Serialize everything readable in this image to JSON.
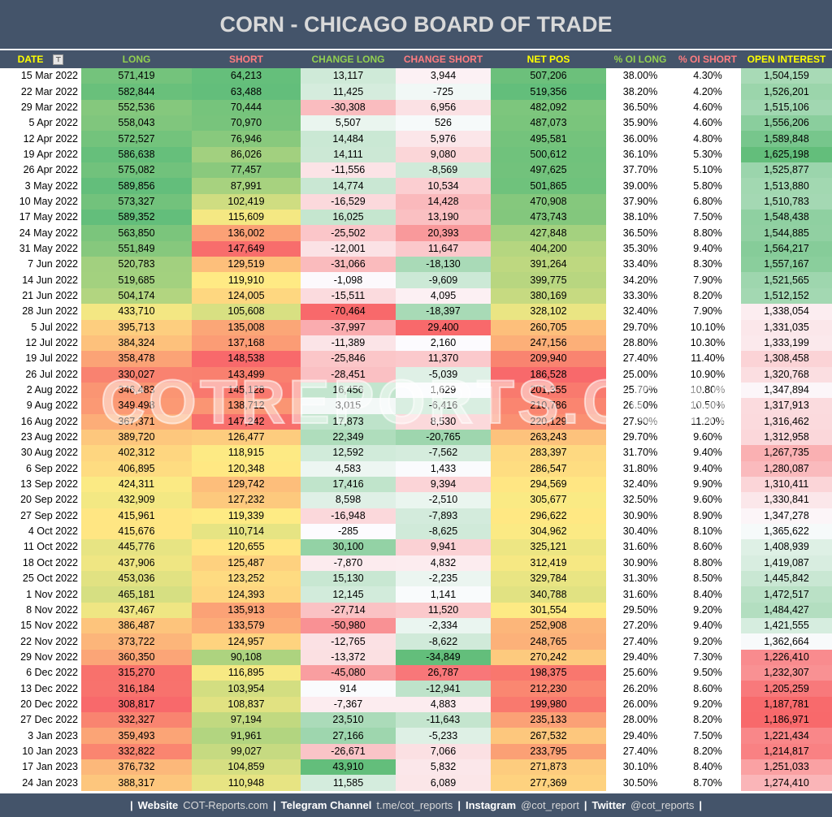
{
  "title": "CORN - CHICAGO BOARD OF TRADE",
  "columns": [
    {
      "label": "DATE",
      "color": "#ffff00"
    },
    {
      "label": "LONG",
      "color": "#92d050"
    },
    {
      "label": "SHORT",
      "color": "#ff7c80"
    },
    {
      "label": "CHANGE LONG",
      "color": "#92d050"
    },
    {
      "label": "CHANGE SHORT",
      "color": "#ff7c80"
    },
    {
      "label": "NET POS",
      "color": "#ffff00"
    },
    {
      "label": "% OI LONG",
      "color": "#92d050"
    },
    {
      "label": "% OI SHORT",
      "color": "#ff7c80"
    },
    {
      "label": "OPEN INTEREST",
      "color": "#ffff00"
    }
  ],
  "filter_icon": "filter-sort-icon",
  "scale_colors": {
    "red": "#f8696b",
    "yellow": "#ffeb84",
    "green": "#63be7b",
    "white": "#fcfcff"
  },
  "rows": [
    [
      "15 Mar 2022",
      "571,419",
      "64,213",
      "13,117",
      "3,944",
      "507,206",
      "38.00%",
      "4.30%",
      "1,504,159"
    ],
    [
      "22 Mar 2022",
      "582,844",
      "63,488",
      "11,425",
      "-725",
      "519,356",
      "38.20%",
      "4.20%",
      "1,526,201"
    ],
    [
      "29 Mar 2022",
      "552,536",
      "70,444",
      "-30,308",
      "6,956",
      "482,092",
      "36.50%",
      "4.60%",
      "1,515,106"
    ],
    [
      "5 Apr 2022",
      "558,043",
      "70,970",
      "5,507",
      "526",
      "487,073",
      "35.90%",
      "4.60%",
      "1,556,206"
    ],
    [
      "12 Apr 2022",
      "572,527",
      "76,946",
      "14,484",
      "5,976",
      "495,581",
      "36.00%",
      "4.80%",
      "1,589,848"
    ],
    [
      "19 Apr 2022",
      "586,638",
      "86,026",
      "14,111",
      "9,080",
      "500,612",
      "36.10%",
      "5.30%",
      "1,625,198"
    ],
    [
      "26 Apr 2022",
      "575,082",
      "77,457",
      "-11,556",
      "-8,569",
      "497,625",
      "37.70%",
      "5.10%",
      "1,525,877"
    ],
    [
      "3 May 2022",
      "589,856",
      "87,991",
      "14,774",
      "10,534",
      "501,865",
      "39.00%",
      "5.80%",
      "1,513,880"
    ],
    [
      "10 May 2022",
      "573,327",
      "102,419",
      "-16,529",
      "14,428",
      "470,908",
      "37.90%",
      "6.80%",
      "1,510,783"
    ],
    [
      "17 May 2022",
      "589,352",
      "115,609",
      "16,025",
      "13,190",
      "473,743",
      "38.10%",
      "7.50%",
      "1,548,438"
    ],
    [
      "24 May 2022",
      "563,850",
      "136,002",
      "-25,502",
      "20,393",
      "427,848",
      "36.50%",
      "8.80%",
      "1,544,885"
    ],
    [
      "31 May 2022",
      "551,849",
      "147,649",
      "-12,001",
      "11,647",
      "404,200",
      "35.30%",
      "9.40%",
      "1,564,217"
    ],
    [
      "7 Jun 2022",
      "520,783",
      "129,519",
      "-31,066",
      "-18,130",
      "391,264",
      "33.40%",
      "8.30%",
      "1,557,167"
    ],
    [
      "14 Jun 2022",
      "519,685",
      "119,910",
      "-1,098",
      "-9,609",
      "399,775",
      "34.20%",
      "7.90%",
      "1,521,565"
    ],
    [
      "21 Jun 2022",
      "504,174",
      "124,005",
      "-15,511",
      "4,095",
      "380,169",
      "33.30%",
      "8.20%",
      "1,512,152"
    ],
    [
      "28 Jun 2022",
      "433,710",
      "105,608",
      "-70,464",
      "-18,397",
      "328,102",
      "32.40%",
      "7.90%",
      "1,338,054"
    ],
    [
      "5 Jul 2022",
      "395,713",
      "135,008",
      "-37,997",
      "29,400",
      "260,705",
      "29.70%",
      "10.10%",
      "1,331,035"
    ],
    [
      "12 Jul 2022",
      "384,324",
      "137,168",
      "-11,389",
      "2,160",
      "247,156",
      "28.80%",
      "10.30%",
      "1,333,199"
    ],
    [
      "19 Jul 2022",
      "358,478",
      "148,538",
      "-25,846",
      "11,370",
      "209,940",
      "27.40%",
      "11.40%",
      "1,308,458"
    ],
    [
      "26 Jul 2022",
      "330,027",
      "143,499",
      "-28,451",
      "-5,039",
      "186,528",
      "25.00%",
      "10.90%",
      "1,320,768"
    ],
    [
      "2 Aug 2022",
      "346,483",
      "145,128",
      "16,456",
      "1,629",
      "201,355",
      "25.70%",
      "10.80%",
      "1,347,894"
    ],
    [
      "9 Aug 2022",
      "349,498",
      "138,712",
      "3,015",
      "-6,416",
      "210,786",
      "26.50%",
      "10.50%",
      "1,317,913"
    ],
    [
      "16 Aug 2022",
      "367,371",
      "147,242",
      "17,873",
      "8,530",
      "220,129",
      "27.90%",
      "11.20%",
      "1,316,462"
    ],
    [
      "23 Aug 2022",
      "389,720",
      "126,477",
      "22,349",
      "-20,765",
      "263,243",
      "29.70%",
      "9.60%",
      "1,312,958"
    ],
    [
      "30 Aug 2022",
      "402,312",
      "118,915",
      "12,592",
      "-7,562",
      "283,397",
      "31.70%",
      "9.40%",
      "1,267,735"
    ],
    [
      "6 Sep 2022",
      "406,895",
      "120,348",
      "4,583",
      "1,433",
      "286,547",
      "31.80%",
      "9.40%",
      "1,280,087"
    ],
    [
      "13 Sep 2022",
      "424,311",
      "129,742",
      "17,416",
      "9,394",
      "294,569",
      "32.40%",
      "9.90%",
      "1,310,411"
    ],
    [
      "20 Sep 2022",
      "432,909",
      "127,232",
      "8,598",
      "-2,510",
      "305,677",
      "32.50%",
      "9.60%",
      "1,330,841"
    ],
    [
      "27 Sep 2022",
      "415,961",
      "119,339",
      "-16,948",
      "-7,893",
      "296,622",
      "30.90%",
      "8.90%",
      "1,347,278"
    ],
    [
      "4 Oct 2022",
      "415,676",
      "110,714",
      "-285",
      "-8,625",
      "304,962",
      "30.40%",
      "8.10%",
      "1,365,622"
    ],
    [
      "11 Oct 2022",
      "445,776",
      "120,655",
      "30,100",
      "9,941",
      "325,121",
      "31.60%",
      "8.60%",
      "1,408,939"
    ],
    [
      "18 Oct 2022",
      "437,906",
      "125,487",
      "-7,870",
      "4,832",
      "312,419",
      "30.90%",
      "8.80%",
      "1,419,087"
    ],
    [
      "25 Oct 2022",
      "453,036",
      "123,252",
      "15,130",
      "-2,235",
      "329,784",
      "31.30%",
      "8.50%",
      "1,445,842"
    ],
    [
      "1 Nov 2022",
      "465,181",
      "124,393",
      "12,145",
      "1,141",
      "340,788",
      "31.60%",
      "8.40%",
      "1,472,517"
    ],
    [
      "8 Nov 2022",
      "437,467",
      "135,913",
      "-27,714",
      "11,520",
      "301,554",
      "29.50%",
      "9.20%",
      "1,484,427"
    ],
    [
      "15 Nov 2022",
      "386,487",
      "133,579",
      "-50,980",
      "-2,334",
      "252,908",
      "27.20%",
      "9.40%",
      "1,421,555"
    ],
    [
      "22 Nov 2022",
      "373,722",
      "124,957",
      "-12,765",
      "-8,622",
      "248,765",
      "27.40%",
      "9.20%",
      "1,362,664"
    ],
    [
      "29 Nov 2022",
      "360,350",
      "90,108",
      "-13,372",
      "-34,849",
      "270,242",
      "29.40%",
      "7.30%",
      "1,226,410"
    ],
    [
      "6 Dec 2022",
      "315,270",
      "116,895",
      "-45,080",
      "26,787",
      "198,375",
      "25.60%",
      "9.50%",
      "1,232,307"
    ],
    [
      "13 Dec 2022",
      "316,184",
      "103,954",
      "914",
      "-12,941",
      "212,230",
      "26.20%",
      "8.60%",
      "1,205,259"
    ],
    [
      "20 Dec 2022",
      "308,817",
      "108,837",
      "-7,367",
      "4,883",
      "199,980",
      "26.00%",
      "9.20%",
      "1,187,781"
    ],
    [
      "27 Dec 2022",
      "332,327",
      "97,194",
      "23,510",
      "-11,643",
      "235,133",
      "28.00%",
      "8.20%",
      "1,186,971"
    ],
    [
      "3 Jan 2023",
      "359,493",
      "91,961",
      "27,166",
      "-5,233",
      "267,532",
      "29.40%",
      "7.50%",
      "1,221,434"
    ],
    [
      "10 Jan 2023",
      "332,822",
      "99,027",
      "-26,671",
      "7,066",
      "233,795",
      "27.40%",
      "8.20%",
      "1,214,817"
    ],
    [
      "17 Jan 2023",
      "376,732",
      "104,859",
      "43,910",
      "5,832",
      "271,873",
      "30.10%",
      "8.40%",
      "1,251,033"
    ],
    [
      "24 Jan 2023",
      "388,317",
      "110,948",
      "11,585",
      "6,089",
      "277,369",
      "30.50%",
      "8.70%",
      "1,274,410"
    ]
  ],
  "watermark": "COTREPORTS.COM",
  "footer": {
    "website_label": "Website",
    "website_value": "COT-Reports.com",
    "telegram_label": "Telegram Channel",
    "telegram_value": "t.me/cot_reports",
    "instagram_label": "Instagram",
    "instagram_value": "@cot_report",
    "twitter_label": "Twitter",
    "twitter_value": "@cot_reports"
  }
}
